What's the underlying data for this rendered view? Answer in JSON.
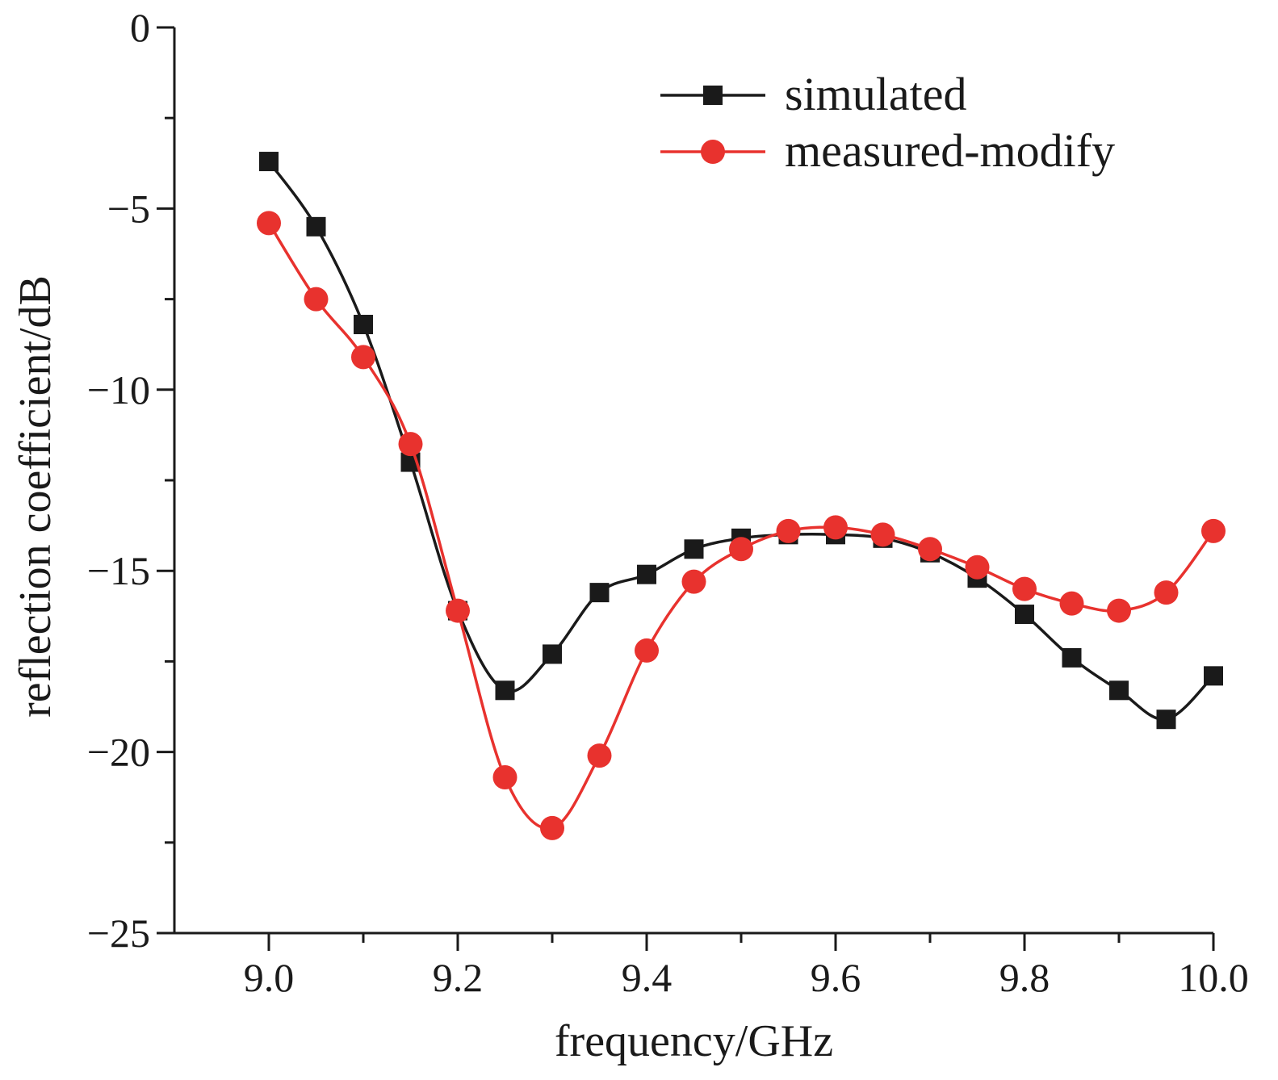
{
  "chart_data": {
    "type": "line",
    "title": "",
    "xlabel": "frequency/GHz",
    "ylabel": "reflection coefficient/dB",
    "xlim": [
      8.9,
      10.0
    ],
    "ylim": [
      -25,
      0
    ],
    "xticks": [
      9.0,
      9.2,
      9.4,
      9.6,
      9.8,
      10.0
    ],
    "xtick_labels": [
      "9.0",
      "9.2",
      "9.4",
      "9.6",
      "9.8",
      "10.0"
    ],
    "yticks": [
      0,
      -5,
      -10,
      -15,
      -20,
      -25
    ],
    "ytick_labels": [
      "0",
      "−5",
      "−10",
      "−15",
      "−20",
      "−25"
    ],
    "grid": false,
    "legend_position": "top-right",
    "series": [
      {
        "name": "simulated",
        "color": "#1a1a1a",
        "marker": "square",
        "x": [
          9.0,
          9.05,
          9.1,
          9.15,
          9.2,
          9.25,
          9.3,
          9.35,
          9.4,
          9.45,
          9.5,
          9.55,
          9.6,
          9.65,
          9.7,
          9.75,
          9.8,
          9.85,
          9.9,
          9.95,
          10.0
        ],
        "y": [
          -3.7,
          -5.5,
          -8.2,
          -12.0,
          -16.1,
          -18.3,
          -17.3,
          -15.6,
          -15.1,
          -14.4,
          -14.1,
          -14.0,
          -14.0,
          -14.1,
          -14.5,
          -15.2,
          -16.2,
          -17.4,
          -18.3,
          -19.1,
          -17.9
        ]
      },
      {
        "name": "measured-modify",
        "color": "#e8322e",
        "marker": "circle",
        "x": [
          9.0,
          9.05,
          9.1,
          9.15,
          9.2,
          9.25,
          9.3,
          9.35,
          9.4,
          9.45,
          9.5,
          9.55,
          9.6,
          9.65,
          9.7,
          9.75,
          9.8,
          9.85,
          9.9,
          9.95,
          10.0
        ],
        "y": [
          -5.4,
          -7.5,
          -9.1,
          -11.5,
          -16.1,
          -20.7,
          -22.1,
          -20.1,
          -17.2,
          -15.3,
          -14.4,
          -13.9,
          -13.8,
          -14.0,
          -14.4,
          -14.9,
          -15.5,
          -15.9,
          -16.1,
          -15.6,
          -13.9
        ]
      }
    ]
  }
}
